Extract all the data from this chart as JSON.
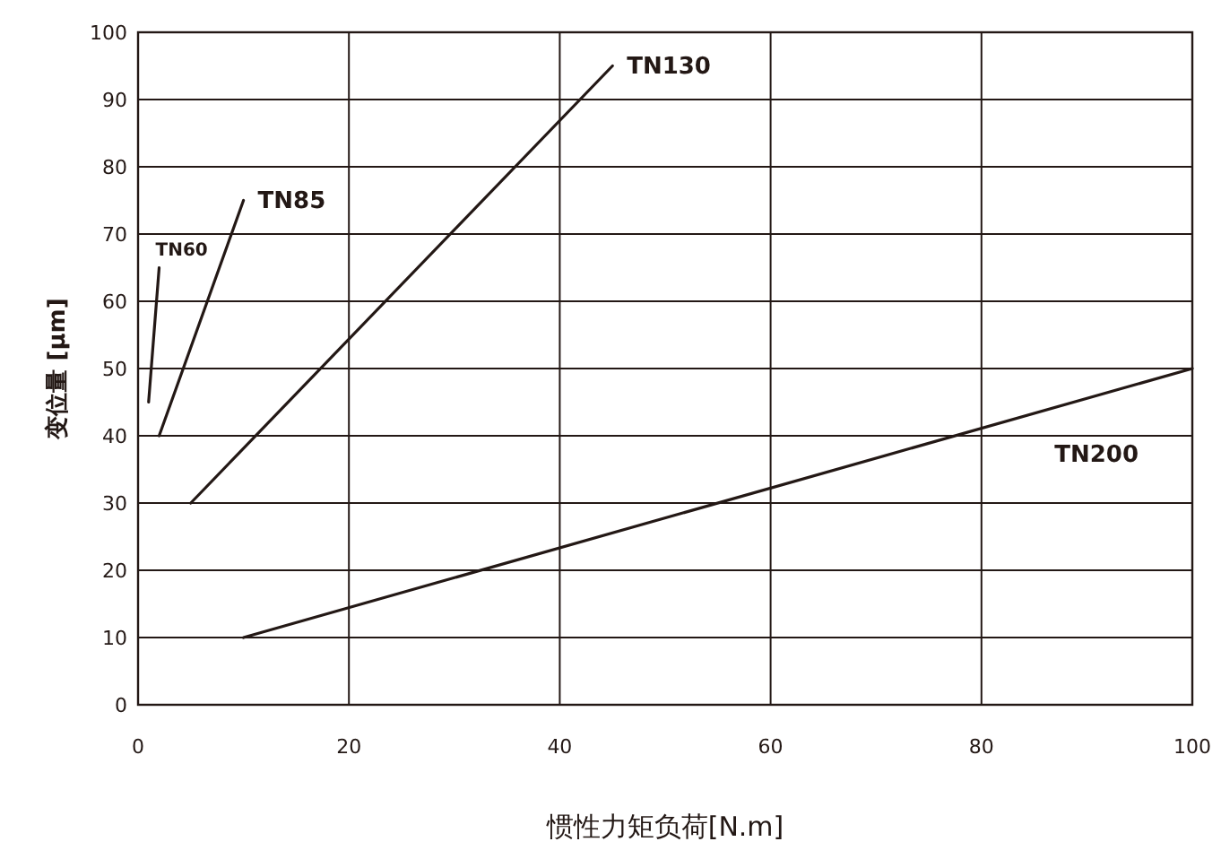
{
  "chart_data": {
    "type": "line",
    "xlabel": "惯性力矩负荷[N.m]",
    "ylabel": "变位量 [μm]",
    "series": [
      {
        "name": "TN60",
        "color": "#231815",
        "x": [
          1,
          2
        ],
        "values": [
          45,
          65
        ]
      },
      {
        "name": "TN85",
        "color": "#231815",
        "x": [
          2,
          10
        ],
        "values": [
          40,
          75
        ]
      },
      {
        "name": "TN130",
        "color": "#231815",
        "x": [
          5,
          45
        ],
        "values": [
          30,
          95
        ]
      },
      {
        "name": "TN200",
        "color": "#231815",
        "x": [
          10,
          100
        ],
        "values": [
          10,
          50
        ]
      }
    ],
    "xlim": [
      0,
      100
    ],
    "xticks": [
      0,
      20,
      40,
      60,
      80,
      100
    ],
    "ylim": [
      0,
      100
    ],
    "yticks": [
      0,
      10,
      20,
      30,
      40,
      50,
      60,
      70,
      80,
      90,
      100
    ],
    "grid": true,
    "marker": "none",
    "line_style": "solid"
  }
}
